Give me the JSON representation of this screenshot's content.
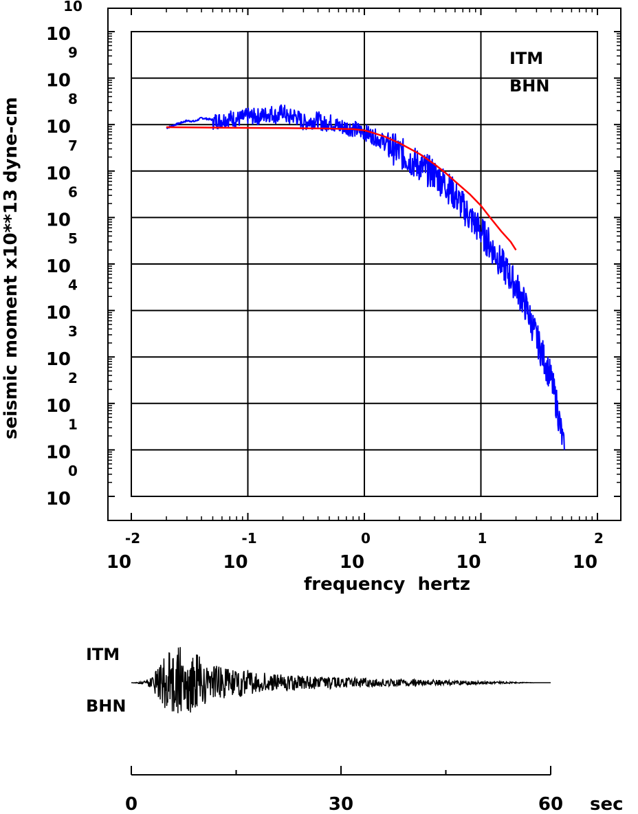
{
  "chart_data": [
    {
      "type": "line",
      "title": "",
      "xlabel": "frequency  hertz",
      "ylabel": "seismic moment x10**13 dyne-cm",
      "x_scale": "log",
      "y_scale": "log",
      "xlim": [
        0.01,
        100
      ],
      "ylim": [
        1,
        10000000000
      ],
      "grid": true,
      "x_ticks": [
        {
          "base": "10",
          "exp": "-2"
        },
        {
          "base": "10",
          "exp": "-1"
        },
        {
          "base": "10",
          "exp": "0"
        },
        {
          "base": "10",
          "exp": "1"
        },
        {
          "base": "10",
          "exp": "2"
        }
      ],
      "y_ticks": [
        {
          "base": "10",
          "exp": "0"
        },
        {
          "base": "10",
          "exp": "1"
        },
        {
          "base": "10",
          "exp": "2"
        },
        {
          "base": "10",
          "exp": "3"
        },
        {
          "base": "10",
          "exp": "4"
        },
        {
          "base": "10",
          "exp": "5"
        },
        {
          "base": "10",
          "exp": "6"
        },
        {
          "base": "10",
          "exp": "7"
        },
        {
          "base": "10",
          "exp": "8"
        },
        {
          "base": "10",
          "exp": "9"
        },
        {
          "base": "10",
          "exp": "10"
        }
      ],
      "annotation": [
        "ITM",
        "BHN"
      ],
      "series": [
        {
          "color": "#0000ff",
          "x": [
            0.02,
            0.025,
            0.03,
            0.035,
            0.04,
            0.05,
            0.06,
            0.07,
            0.08,
            0.09,
            0.1,
            0.12,
            0.14,
            0.16,
            0.18,
            0.2,
            0.22,
            0.25,
            0.28,
            0.3,
            0.35,
            0.4,
            0.45,
            0.5,
            0.6,
            0.7,
            0.8,
            0.9,
            1.0,
            1.2,
            1.5,
            2,
            2.5,
            3,
            4,
            5,
            6,
            7,
            8,
            10,
            12,
            15,
            20,
            25,
            30,
            40,
            45,
            50,
            52
          ],
          "y": [
            85000000,
            105000000,
            122000000,
            118000000,
            140000000,
            128000000,
            135000000,
            150000000,
            140000000,
            150000000,
            165000000,
            160000000,
            175000000,
            190000000,
            160000000,
            220000000,
            150000000,
            170000000,
            140000000,
            120000000,
            130000000,
            140000000,
            110000000,
            125000000,
            100000000,
            95000000,
            90000000,
            80000000,
            75000000,
            60000000,
            45000000,
            30000000,
            20000000,
            15000000,
            10000000,
            6000000,
            3500000,
            2000000,
            1200000,
            600000,
            300000,
            120000,
            40000,
            12000,
            3000,
            400,
            100,
            20,
            10
          ]
        },
        {
          "color": "#ff0000",
          "x": [
            0.02,
            0.05,
            0.1,
            0.2,
            0.5,
            0.8,
            1.0,
            1.2,
            1.5,
            2,
            3,
            4,
            5,
            6,
            8,
            10,
            12,
            15,
            18,
            20
          ],
          "y": [
            88000000,
            86000000,
            85000000,
            84000000,
            82000000,
            80000000,
            75000000,
            66000000,
            55000000,
            40000000,
            23000000,
            14000000,
            9000000,
            6000000,
            3200000,
            1800000,
            1000000,
            500000,
            300000,
            200000
          ]
        }
      ]
    },
    {
      "type": "line",
      "title": "",
      "annotation": [
        "ITM",
        "BHN"
      ],
      "xlim": [
        0,
        60
      ],
      "x_ticks": [
        "0",
        "30",
        "60"
      ],
      "x_unit": "sec",
      "series": [
        {
          "color": "#000000",
          "description_free": true,
          "x": [
            0,
            1,
            2,
            2.5,
            3,
            3.5,
            4,
            4.5,
            5,
            5.5,
            6,
            6.5,
            7,
            7.5,
            8,
            8.5,
            9,
            9.5,
            10,
            10.5,
            11,
            12,
            13,
            14,
            15,
            16,
            17,
            18,
            19,
            20,
            22,
            24,
            26,
            28,
            30,
            32,
            34,
            36,
            38,
            40,
            42,
            44,
            46,
            48,
            50,
            52,
            54,
            56,
            58,
            60
          ],
          "y": [
            0,
            0.02,
            -0.05,
            0.1,
            -0.15,
            0.3,
            -0.4,
            0.55,
            -0.7,
            0.8,
            -0.85,
            0.9,
            -1.0,
            0.75,
            -0.65,
            0.85,
            -0.6,
            0.7,
            -0.55,
            0.5,
            -0.45,
            0.4,
            -0.4,
            0.35,
            -0.3,
            0.35,
            -0.3,
            0.25,
            -0.25,
            0.2,
            -0.2,
            0.18,
            -0.15,
            0.15,
            -0.12,
            0.12,
            -0.1,
            0.1,
            -0.08,
            0.08,
            -0.07,
            0.07,
            -0.05,
            0.05,
            -0.03,
            0.03,
            -0.02,
            0.01,
            0,
            0
          ]
        }
      ]
    }
  ]
}
